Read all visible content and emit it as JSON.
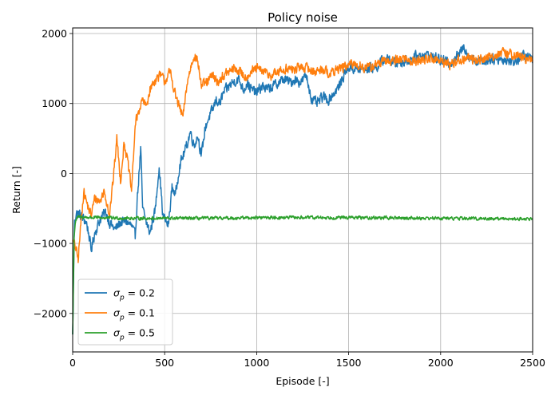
{
  "chart_data": {
    "type": "line",
    "title": "Policy noise",
    "xlabel": "Episode [-]",
    "ylabel": "Return [-]",
    "xlim": [
      0,
      2500
    ],
    "ylim": [
      -2550,
      2080
    ],
    "xticks": [
      0,
      500,
      1000,
      1500,
      2000,
      2500
    ],
    "xtick_labels": [
      "0",
      "500",
      "1000",
      "1500",
      "2000",
      "2500"
    ],
    "yticks": [
      -2000,
      -1000,
      0,
      1000,
      2000
    ],
    "ytick_labels": [
      "−2000",
      "−1000",
      "0",
      "1000",
      "2000"
    ],
    "grid": true,
    "legend_position": "lower-left",
    "series": [
      {
        "name": "σ",
        "name_sub": "p",
        "name_suffix": " = 0.2",
        "color": "#1f77b4",
        "keypoints": [
          [
            0,
            -2300
          ],
          [
            10,
            -650
          ],
          [
            25,
            -560
          ],
          [
            50,
            -620
          ],
          [
            75,
            -700
          ],
          [
            90,
            -900
          ],
          [
            100,
            -1100
          ],
          [
            120,
            -850
          ],
          [
            150,
            -650
          ],
          [
            180,
            -550
          ],
          [
            200,
            -700
          ],
          [
            230,
            -800
          ],
          [
            260,
            -700
          ],
          [
            290,
            -680
          ],
          [
            320,
            -750
          ],
          [
            340,
            -900
          ],
          [
            350,
            -400
          ],
          [
            370,
            350
          ],
          [
            380,
            -500
          ],
          [
            400,
            -700
          ],
          [
            420,
            -850
          ],
          [
            450,
            -500
          ],
          [
            470,
            120
          ],
          [
            490,
            -600
          ],
          [
            520,
            -750
          ],
          [
            540,
            -200
          ],
          [
            560,
            -300
          ],
          [
            580,
            100
          ],
          [
            600,
            250
          ],
          [
            620,
            400
          ],
          [
            640,
            600
          ],
          [
            660,
            400
          ],
          [
            680,
            550
          ],
          [
            700,
            250
          ],
          [
            720,
            650
          ],
          [
            740,
            800
          ],
          [
            760,
            900
          ],
          [
            780,
            1050
          ],
          [
            800,
            1000
          ],
          [
            820,
            1150
          ],
          [
            850,
            1250
          ],
          [
            870,
            1300
          ],
          [
            900,
            1350
          ],
          [
            930,
            1200
          ],
          [
            950,
            1300
          ],
          [
            970,
            1200
          ],
          [
            1000,
            1150
          ],
          [
            1030,
            1250
          ],
          [
            1060,
            1200
          ],
          [
            1090,
            1250
          ],
          [
            1120,
            1300
          ],
          [
            1150,
            1350
          ],
          [
            1180,
            1300
          ],
          [
            1210,
            1350
          ],
          [
            1240,
            1300
          ],
          [
            1270,
            1400
          ],
          [
            1300,
            1050
          ],
          [
            1330,
            1000
          ],
          [
            1360,
            1100
          ],
          [
            1390,
            1050
          ],
          [
            1420,
            1150
          ],
          [
            1450,
            1250
          ],
          [
            1480,
            1450
          ],
          [
            1500,
            1520
          ],
          [
            1550,
            1480
          ],
          [
            1600,
            1500
          ],
          [
            1650,
            1520
          ],
          [
            1700,
            1650
          ],
          [
            1750,
            1580
          ],
          [
            1800,
            1600
          ],
          [
            1850,
            1650
          ],
          [
            1900,
            1700
          ],
          [
            1950,
            1680
          ],
          [
            2000,
            1620
          ],
          [
            2050,
            1580
          ],
          [
            2100,
            1700
          ],
          [
            2130,
            1820
          ],
          [
            2150,
            1680
          ],
          [
            2200,
            1600
          ],
          [
            2250,
            1620
          ],
          [
            2300,
            1650
          ],
          [
            2350,
            1620
          ],
          [
            2400,
            1600
          ],
          [
            2450,
            1680
          ],
          [
            2500,
            1650
          ]
        ],
        "noise": 90
      },
      {
        "name": "σ",
        "name_sub": "p",
        "name_suffix": " = 0.1",
        "color": "#ff7f0e",
        "keypoints": [
          [
            0,
            -950
          ],
          [
            15,
            -1050
          ],
          [
            30,
            -1230
          ],
          [
            45,
            -700
          ],
          [
            60,
            -250
          ],
          [
            80,
            -450
          ],
          [
            100,
            -600
          ],
          [
            120,
            -350
          ],
          [
            150,
            -400
          ],
          [
            170,
            -250
          ],
          [
            190,
            -450
          ],
          [
            200,
            -600
          ],
          [
            220,
            -100
          ],
          [
            240,
            500
          ],
          [
            260,
            -100
          ],
          [
            280,
            450
          ],
          [
            300,
            150
          ],
          [
            320,
            -250
          ],
          [
            340,
            700
          ],
          [
            360,
            900
          ],
          [
            380,
            1050
          ],
          [
            400,
            950
          ],
          [
            420,
            1200
          ],
          [
            450,
            1350
          ],
          [
            480,
            1400
          ],
          [
            500,
            1320
          ],
          [
            530,
            1450
          ],
          [
            560,
            1100
          ],
          [
            600,
            800
          ],
          [
            620,
            1250
          ],
          [
            640,
            1500
          ],
          [
            660,
            1700
          ],
          [
            680,
            1600
          ],
          [
            700,
            1250
          ],
          [
            730,
            1300
          ],
          [
            760,
            1400
          ],
          [
            790,
            1300
          ],
          [
            820,
            1400
          ],
          [
            850,
            1450
          ],
          [
            880,
            1500
          ],
          [
            910,
            1450
          ],
          [
            940,
            1380
          ],
          [
            970,
            1450
          ],
          [
            1000,
            1500
          ],
          [
            1040,
            1450
          ],
          [
            1080,
            1400
          ],
          [
            1120,
            1450
          ],
          [
            1160,
            1500
          ],
          [
            1200,
            1480
          ],
          [
            1240,
            1520
          ],
          [
            1280,
            1500
          ],
          [
            1320,
            1450
          ],
          [
            1360,
            1500
          ],
          [
            1400,
            1420
          ],
          [
            1440,
            1500
          ],
          [
            1480,
            1520
          ],
          [
            1520,
            1560
          ],
          [
            1560,
            1550
          ],
          [
            1600,
            1500
          ],
          [
            1650,
            1560
          ],
          [
            1700,
            1600
          ],
          [
            1750,
            1620
          ],
          [
            1800,
            1650
          ],
          [
            1850,
            1600
          ],
          [
            1900,
            1620
          ],
          [
            1950,
            1650
          ],
          [
            2000,
            1600
          ],
          [
            2050,
            1560
          ],
          [
            2100,
            1620
          ],
          [
            2150,
            1650
          ],
          [
            2200,
            1620
          ],
          [
            2250,
            1650
          ],
          [
            2300,
            1700
          ],
          [
            2350,
            1720
          ],
          [
            2400,
            1700
          ],
          [
            2450,
            1650
          ],
          [
            2500,
            1600
          ]
        ],
        "noise": 85
      },
      {
        "name": "σ",
        "name_sub": "p",
        "name_suffix": " = 0.5",
        "color": "#2ca02c",
        "keypoints": [
          [
            0,
            -2300
          ],
          [
            8,
            -900
          ],
          [
            15,
            -680
          ],
          [
            30,
            -620
          ],
          [
            100,
            -630
          ],
          [
            300,
            -640
          ],
          [
            500,
            -640
          ],
          [
            800,
            -640
          ],
          [
            1000,
            -630
          ],
          [
            1500,
            -630
          ],
          [
            2000,
            -640
          ],
          [
            2500,
            -650
          ]
        ],
        "noise": 28
      }
    ]
  }
}
